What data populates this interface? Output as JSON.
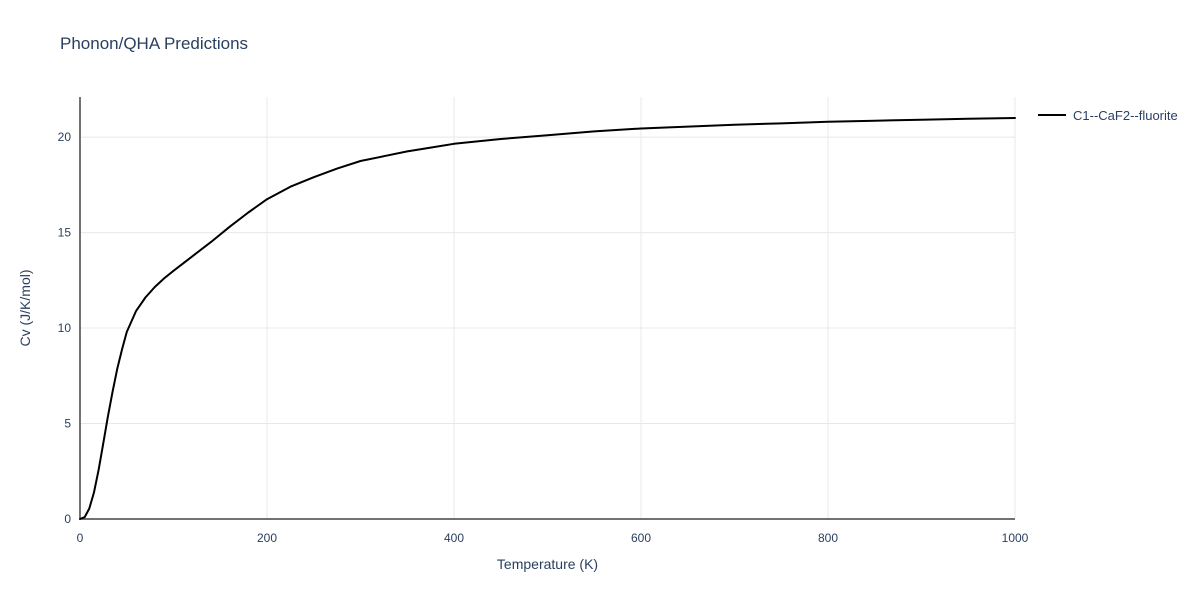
{
  "title": "Phonon/QHA Predictions",
  "colors": {
    "text": "#2a3f5f",
    "grid": "#e8e8e8",
    "axis": "#444444",
    "background": "#ffffff",
    "series1": "#000000"
  },
  "chart_data": {
    "type": "line",
    "title": "Phonon/QHA Predictions",
    "xlabel": "Temperature (K)",
    "ylabel": "Cv (J/K/mol)",
    "xlim": [
      0,
      1000
    ],
    "ylim": [
      0,
      22.1
    ],
    "x_ticks": [
      0,
      200,
      400,
      600,
      800,
      1000
    ],
    "y_ticks": [
      0,
      5,
      10,
      15,
      20
    ],
    "grid": true,
    "legend_position": "top-right-outside",
    "series": [
      {
        "name": "C1--CaF2--fluorite",
        "color": "#000000",
        "points": [
          [
            0,
            0.0
          ],
          [
            5,
            0.1
          ],
          [
            10,
            0.55
          ],
          [
            15,
            1.4
          ],
          [
            20,
            2.6
          ],
          [
            25,
            4.0
          ],
          [
            30,
            5.4
          ],
          [
            35,
            6.7
          ],
          [
            40,
            7.9
          ],
          [
            45,
            8.9
          ],
          [
            50,
            9.8
          ],
          [
            60,
            10.9
          ],
          [
            70,
            11.6
          ],
          [
            80,
            12.15
          ],
          [
            90,
            12.6
          ],
          [
            100,
            13.0
          ],
          [
            120,
            13.75
          ],
          [
            140,
            14.5
          ],
          [
            160,
            15.3
          ],
          [
            180,
            16.05
          ],
          [
            200,
            16.75
          ],
          [
            225,
            17.4
          ],
          [
            250,
            17.9
          ],
          [
            275,
            18.35
          ],
          [
            300,
            18.75
          ],
          [
            325,
            19.0
          ],
          [
            350,
            19.25
          ],
          [
            375,
            19.45
          ],
          [
            400,
            19.65
          ],
          [
            450,
            19.9
          ],
          [
            500,
            20.1
          ],
          [
            550,
            20.3
          ],
          [
            600,
            20.45
          ],
          [
            650,
            20.55
          ],
          [
            700,
            20.65
          ],
          [
            750,
            20.72
          ],
          [
            800,
            20.8
          ],
          [
            850,
            20.86
          ],
          [
            900,
            20.91
          ],
          [
            950,
            20.96
          ],
          [
            1000,
            21.0
          ]
        ]
      }
    ]
  }
}
